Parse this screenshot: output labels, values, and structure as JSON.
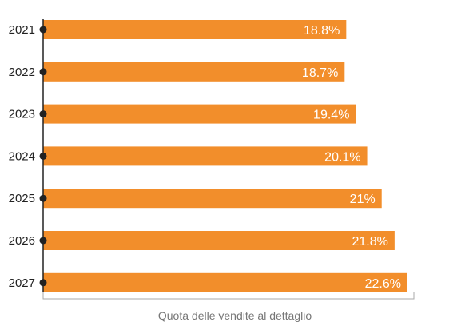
{
  "chart_data": {
    "type": "bar",
    "orientation": "horizontal",
    "categories": [
      "2021",
      "2022",
      "2023",
      "2024",
      "2025",
      "2026",
      "2027"
    ],
    "values": [
      18.8,
      18.7,
      19.4,
      20.1,
      21,
      21.8,
      22.6
    ],
    "value_labels": [
      "18.8%",
      "18.7%",
      "19.4%",
      "20.1%",
      "21%",
      "21.8%",
      "22.6%"
    ],
    "xlabel": "Quota delle vendite al dettaglio",
    "ylabel": "",
    "xlim": [
      0,
      22.6
    ],
    "grid": false,
    "colors": {
      "bar": "#f28e2b",
      "axis": "#222222",
      "value_text": "#ffffff"
    }
  }
}
